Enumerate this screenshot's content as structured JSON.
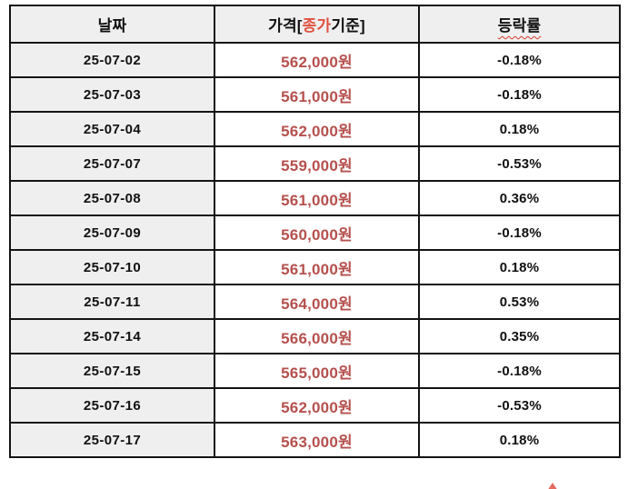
{
  "colors": {
    "border": "#141414",
    "shade_bg": "#efefef",
    "text_black": "#111111",
    "price_red": "#b5504d",
    "highlight_red": "#e0523f",
    "wavy_red": "#d93a2b"
  },
  "table": {
    "headers": {
      "date": "날짜",
      "price_prefix": "가격[",
      "price_highlight": "종가",
      "price_suffix": "기준]",
      "change": "등락률"
    },
    "rows": [
      {
        "date": "25-07-02",
        "price": "562,000원",
        "change": "-0.18%"
      },
      {
        "date": "25-07-03",
        "price": "561,000원",
        "change": "-0.18%"
      },
      {
        "date": "25-07-04",
        "price": "562,000원",
        "change": "0.18%"
      },
      {
        "date": "25-07-07",
        "price": "559,000원",
        "change": "-0.53%"
      },
      {
        "date": "25-07-08",
        "price": "561,000원",
        "change": "0.36%"
      },
      {
        "date": "25-07-09",
        "price": "560,000원",
        "change": "-0.18%"
      },
      {
        "date": "25-07-10",
        "price": "561,000원",
        "change": "0.18%"
      },
      {
        "date": "25-07-11",
        "price": "564,000원",
        "change": "0.53%"
      },
      {
        "date": "25-07-14",
        "price": "566,000원",
        "change": "0.35%"
      },
      {
        "date": "25-07-15",
        "price": "565,000원",
        "change": "-0.18%"
      },
      {
        "date": "25-07-16",
        "price": "562,000원",
        "change": "-0.53%"
      },
      {
        "date": "25-07-17",
        "price": "563,000원",
        "change": "0.18%"
      }
    ]
  },
  "chart_data": {
    "type": "table",
    "title": "",
    "columns": [
      "날짜",
      "가격[종가기준]",
      "등락률"
    ],
    "dates": [
      "25-07-02",
      "25-07-03",
      "25-07-04",
      "25-07-07",
      "25-07-08",
      "25-07-09",
      "25-07-10",
      "25-07-11",
      "25-07-14",
      "25-07-15",
      "25-07-16",
      "25-07-17"
    ],
    "closing_prices_krw": [
      562000,
      561000,
      562000,
      559000,
      561000,
      560000,
      561000,
      564000,
      566000,
      565000,
      562000,
      563000
    ],
    "change_percent": [
      -0.18,
      -0.18,
      0.18,
      -0.53,
      0.36,
      -0.18,
      0.18,
      0.53,
      0.35,
      -0.18,
      -0.53,
      0.18
    ]
  }
}
